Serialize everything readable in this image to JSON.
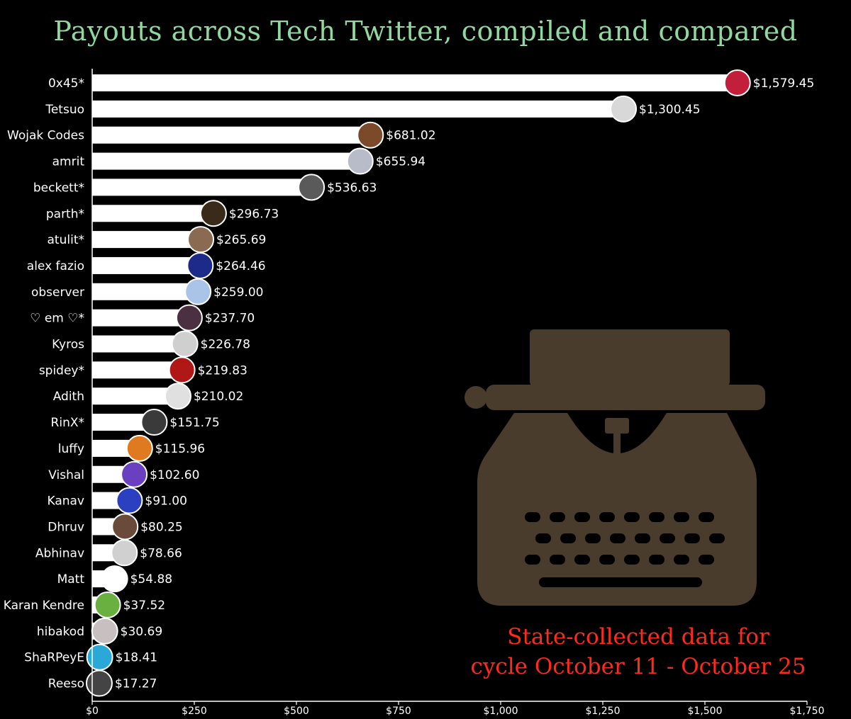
{
  "chart_data": {
    "type": "bar",
    "orientation": "horizontal",
    "title": "Payouts across Tech Twitter, compiled and compared",
    "xlabel": "",
    "ylabel": "",
    "xlim": [
      0,
      1750
    ],
    "x_ticks": [
      0,
      250,
      500,
      750,
      1000,
      1250,
      1500,
      1750
    ],
    "x_tick_labels": [
      "$0",
      "$250",
      "$500",
      "$750",
      "$1,000",
      "$1,250",
      "$1,500",
      "$1,750"
    ],
    "grid": false,
    "bar_color": "#ffffff",
    "label_color": "#ffffff",
    "categories": [
      "0x45*",
      "Tetsuo",
      "Wojak Codes",
      "amrit",
      "beckett*",
      "parth*",
      "atulit*",
      "alex fazio",
      "observer",
      "♡ em ♡*",
      "Kyros",
      "spidey*",
      "Adith",
      "RinX*",
      "luffy",
      "Vishal",
      "Kanav",
      "Dhruv",
      "Abhinav",
      "Matt",
      "Karan Kendre",
      "hibakod",
      "ShaRPeyE",
      "Reeso"
    ],
    "values": [
      1579.45,
      1300.45,
      681.02,
      655.94,
      536.63,
      296.73,
      265.69,
      264.46,
      259.0,
      237.7,
      226.78,
      219.83,
      210.02,
      151.75,
      115.96,
      102.6,
      91.0,
      80.25,
      78.66,
      54.88,
      37.52,
      30.69,
      18.41,
      17.27
    ],
    "value_labels": [
      "$1,579.45",
      "$1,300.45",
      "$681.02",
      "$655.94",
      "$536.63",
      "$296.73",
      "$265.69",
      "$264.46",
      "$259.00",
      "$237.70",
      "$226.78",
      "$219.83",
      "$210.02",
      "$151.75",
      "$115.96",
      "$102.60",
      "$91.00",
      "$80.25",
      "$78.66",
      "$54.88",
      "$37.52",
      "$30.69",
      "$18.41",
      "$17.27"
    ],
    "avatar_colors": [
      "#c2203a",
      "#d8d8d8",
      "#7a4a2a",
      "#b8bcc8",
      "#5a5a5a",
      "#3a2a1a",
      "#8a6a50",
      "#1e2a8a",
      "#aac4e8",
      "#4a3040",
      "#cfcfcf",
      "#b01818",
      "#e0e0e0",
      "#3a3a3a",
      "#e07a20",
      "#6a40c0",
      "#2a40c0",
      "#6a4a3a",
      "#d0d0d0",
      "#ffffff",
      "#6ab040",
      "#c8c0c0",
      "#2aa8d8",
      "#444444"
    ]
  },
  "annotation": {
    "line1": "State-collected data for",
    "line2": "cycle October 11 - October 25",
    "color": "#ff2a1a"
  },
  "decoration": {
    "icon": "typewriter-icon",
    "color": "#4a3c2c"
  },
  "title_color": "#8fd9a0"
}
